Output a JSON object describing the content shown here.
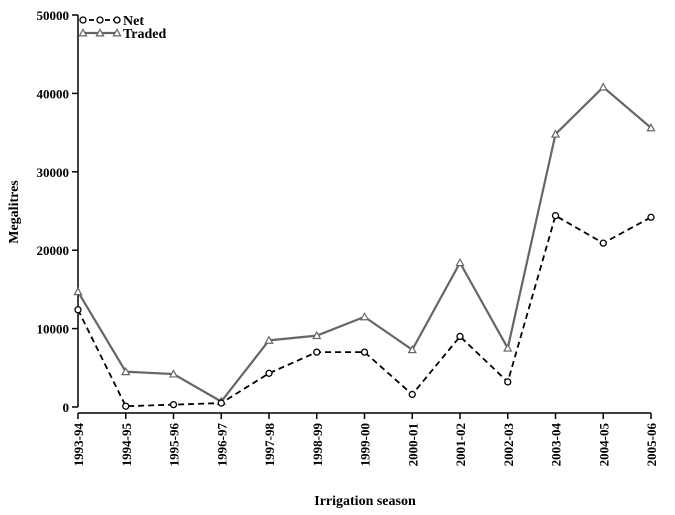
{
  "chart_data": {
    "type": "line",
    "xlabel": "Irrigation season",
    "ylabel": "Megalitres",
    "ylim": [
      0,
      50000
    ],
    "yticks": [
      0,
      10000,
      20000,
      30000,
      40000,
      50000
    ],
    "categories": [
      "1993-94",
      "1994-95",
      "1995-96",
      "1996-97",
      "1997-98",
      "1998-99",
      "1999-00",
      "2000-01",
      "2001-02",
      "2002-03",
      "2003-04",
      "2004-05",
      "2005-06"
    ],
    "legend_position": "top-left",
    "grid": false,
    "series": [
      {
        "name": "Net",
        "color": "#000000",
        "line_style": "dashed",
        "marker": "circle-open",
        "values": [
          12400,
          100,
          300,
          500,
          4300,
          7000,
          7000,
          1600,
          9000,
          3200,
          24400,
          20900,
          24200
        ]
      },
      {
        "name": "Traded",
        "color": "#666666",
        "line_style": "solid",
        "marker": "triangle-open",
        "values": [
          14700,
          4500,
          4200,
          700,
          8500,
          9100,
          11500,
          7300,
          18400,
          7500,
          34800,
          40800,
          35600
        ]
      }
    ]
  }
}
